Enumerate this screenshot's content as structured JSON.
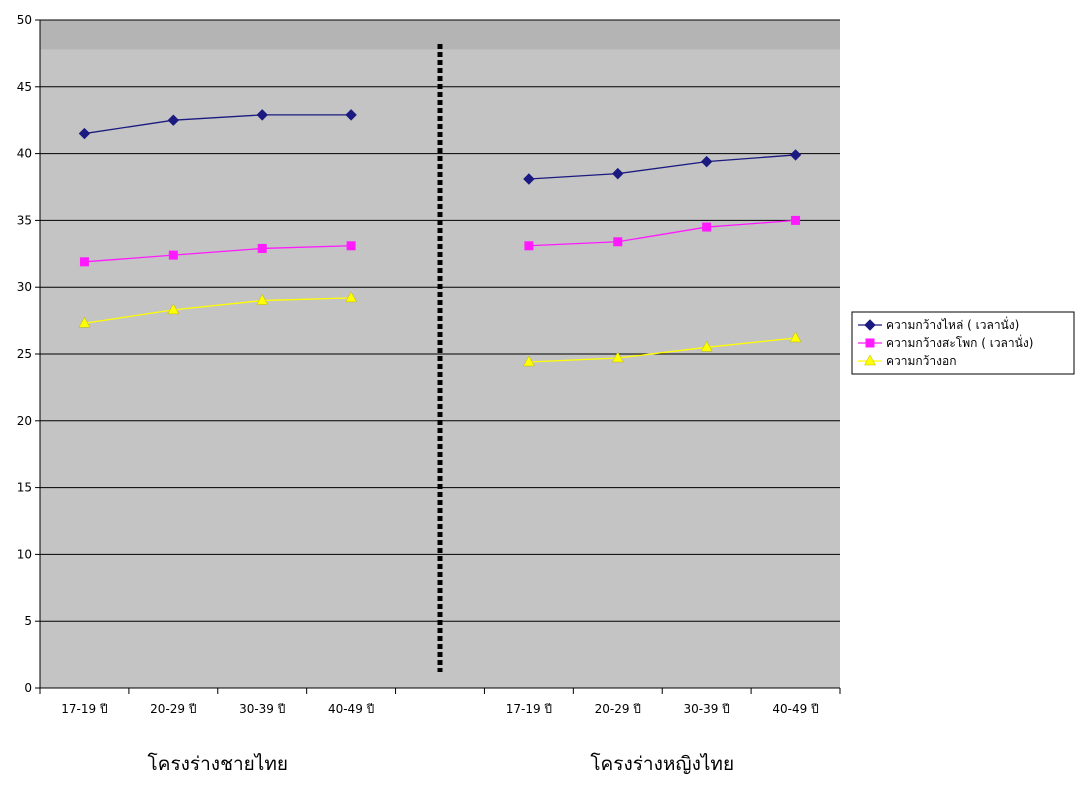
{
  "chart_data": {
    "type": "line",
    "title": "",
    "xlabel": "",
    "ylabel": "",
    "ylim": [
      0,
      50
    ],
    "ytick_step": 5,
    "grid": true,
    "legend_position": "right",
    "categories": [
      "17-19 ปี",
      "20-29 ปี",
      "30-39 ปี",
      "40-49 ปี",
      "17-19 ปี",
      "20-29 ปี",
      "30-39 ปี",
      "40-49 ปี"
    ],
    "groups": [
      {
        "label": "โครงร่างชายไทย",
        "categories": [
          "17-19 ปี",
          "20-29 ปี",
          "30-39 ปี",
          "40-49 ปี"
        ]
      },
      {
        "label": "โครงร่างหญิงไทย",
        "categories": [
          "17-19 ปี",
          "20-29 ปี",
          "30-39 ปี",
          "40-49 ปี"
        ]
      }
    ],
    "series": [
      {
        "name": "ความกว้างไหล่ ( เวลานั่ง)",
        "color": "#1a1a80",
        "marker": "diamond",
        "groups": [
          [
            41.5,
            42.5,
            42.9,
            42.9
          ],
          [
            38.1,
            38.5,
            39.4,
            39.9
          ]
        ]
      },
      {
        "name": "ความกว้างสะโพก ( เวลานั่ง)",
        "color": "#ff1aff",
        "marker": "square",
        "groups": [
          [
            31.9,
            32.4,
            32.9,
            33.1
          ],
          [
            33.1,
            33.4,
            34.5,
            35.0
          ]
        ]
      },
      {
        "name": "ความกว้างอก",
        "color": "#ffff00",
        "marker": "triangle",
        "groups": [
          [
            27.3,
            28.3,
            29.0,
            29.2
          ],
          [
            24.4,
            24.7,
            25.5,
            26.2
          ]
        ]
      }
    ],
    "colors": {
      "plot_background": "#c4c4c4",
      "plot_top_band": "#b4b4b4",
      "gridline": "#000000",
      "divider": "#000000"
    }
  }
}
